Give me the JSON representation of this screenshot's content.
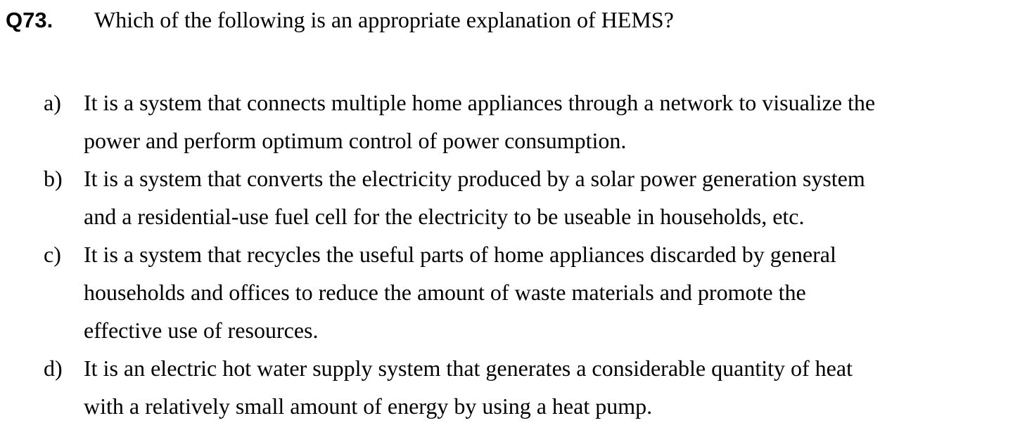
{
  "question": {
    "number": "Q73.",
    "text": "Which of the following is an appropriate explanation of HEMS?"
  },
  "options": [
    {
      "letter": "a)",
      "lines": [
        "It is a system that connects multiple home appliances through a network to visualize the",
        "power and perform optimum control of power consumption."
      ]
    },
    {
      "letter": "b)",
      "lines": [
        "It is a system that converts the electricity produced by a solar power generation system",
        "and a residential-use fuel cell for the electricity to be useable in households, etc."
      ]
    },
    {
      "letter": "c)",
      "lines": [
        "It is a system that recycles the useful parts of home appliances discarded by general",
        "households and offices to reduce the amount of waste materials and promote the",
        "effective use of resources."
      ]
    },
    {
      "letter": "d)",
      "lines": [
        "It is an electric hot water supply system that generates a considerable quantity of heat",
        "with a relatively small amount of energy by using a heat pump."
      ]
    }
  ]
}
